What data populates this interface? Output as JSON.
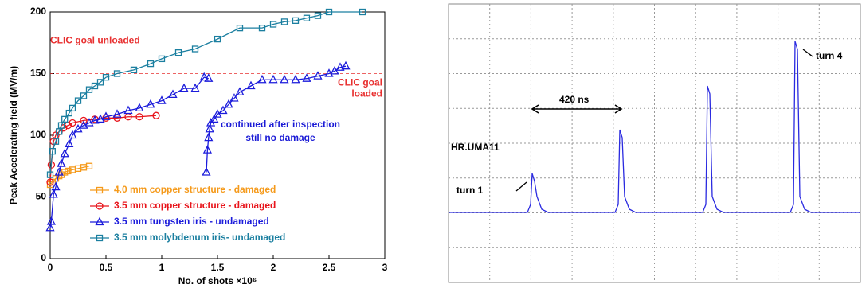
{
  "chart_data": [
    {
      "type": "line",
      "ylabel": "Peak Accelerating field (MV/m)",
      "xlabel": "No. of shots ×10⁶",
      "xlim": [
        0,
        3
      ],
      "xticks": [
        0,
        0.5,
        1,
        1.5,
        2,
        2.5,
        3
      ],
      "ylim": [
        0,
        200
      ],
      "yticks": [
        0,
        50,
        100,
        150,
        200
      ],
      "legend": "lower left",
      "reference_lines": [
        {
          "value": 170,
          "label": [
            "CLIC goal unloaded"
          ],
          "color": "#e83030"
        },
        {
          "value": 150,
          "label": [
            "CLIC goal",
            "loaded"
          ],
          "color": "#e83030"
        }
      ],
      "annotations": [
        {
          "text": [
            "continued after inspection",
            "still no damage"
          ],
          "color": "#1a1ad6"
        }
      ],
      "series": [
        {
          "name": "4.0 mm copper structure - damaged",
          "color": "#f59a1b",
          "marker": "square",
          "x": [
            0,
            0.02,
            0.05,
            0.08,
            0.1,
            0.13,
            0.16,
            0.2,
            0.25,
            0.3,
            0.35
          ],
          "values": [
            60,
            62,
            65,
            67,
            68,
            70,
            71,
            72,
            73,
            74,
            75
          ]
        },
        {
          "name": "3.5 mm copper structure - damaged",
          "color": "#e8141b",
          "marker": "circle",
          "x": [
            0,
            0.01,
            0.03,
            0.05,
            0.08,
            0.12,
            0.16,
            0.2,
            0.3,
            0.4,
            0.5,
            0.6,
            0.7,
            0.8,
            0.95
          ],
          "values": [
            62,
            76,
            95,
            100,
            103,
            106,
            108,
            110,
            112,
            113,
            114,
            114,
            115,
            115,
            116
          ]
        },
        {
          "name": "3.5 mm tungsten iris - undamaged",
          "color": "#1b1bdb",
          "marker": "triangle",
          "x": [
            0,
            0.01,
            0.03,
            0.05,
            0.08,
            0.1,
            0.13,
            0.17,
            0.2,
            0.25,
            0.3,
            0.35,
            0.4,
            0.45,
            0.5,
            0.6,
            0.7,
            0.8,
            0.9,
            1.0,
            1.1,
            1.2,
            1.3,
            1.38,
            1.42,
            null,
            1.4,
            1.41,
            1.42,
            1.43,
            1.44,
            1.47,
            1.5,
            1.55,
            1.6,
            1.65,
            1.7,
            1.8,
            1.9,
            2.0,
            2.1,
            2.2,
            2.3,
            2.4,
            2.5,
            2.55,
            2.6,
            2.65
          ],
          "values": [
            25,
            30,
            52,
            58,
            70,
            77,
            85,
            93,
            100,
            105,
            108,
            110,
            112,
            113,
            115,
            117,
            120,
            122,
            125,
            128,
            133,
            138,
            138,
            147,
            146,
            null,
            70,
            88,
            98,
            105,
            110,
            113,
            117,
            120,
            125,
            130,
            135,
            140,
            145,
            145,
            145,
            145,
            146,
            148,
            150,
            152,
            155,
            156
          ]
        },
        {
          "name": "3.5 mm molybdenum iris- undamaged",
          "color": "#1b7fa0",
          "marker": "square",
          "x": [
            0,
            0.02,
            0.05,
            0.08,
            0.1,
            0.13,
            0.17,
            0.2,
            0.25,
            0.3,
            0.35,
            0.4,
            0.45,
            0.5,
            0.6,
            0.75,
            0.9,
            1.0,
            1.15,
            1.3,
            1.5,
            1.7,
            1.9,
            2.0,
            2.1,
            2.2,
            2.3,
            2.4,
            2.5,
            2.8
          ],
          "values": [
            68,
            87,
            95,
            103,
            108,
            113,
            118,
            122,
            128,
            132,
            137,
            140,
            143,
            147,
            150,
            153,
            158,
            162,
            167,
            170,
            178,
            187,
            187,
            190,
            192,
            193,
            195,
            197,
            200,
            200
          ]
        }
      ]
    },
    {
      "type": "scope",
      "annotations": [
        "420 ns",
        "HR.UMA11",
        "turn 1",
        "turn 4"
      ]
    }
  ]
}
